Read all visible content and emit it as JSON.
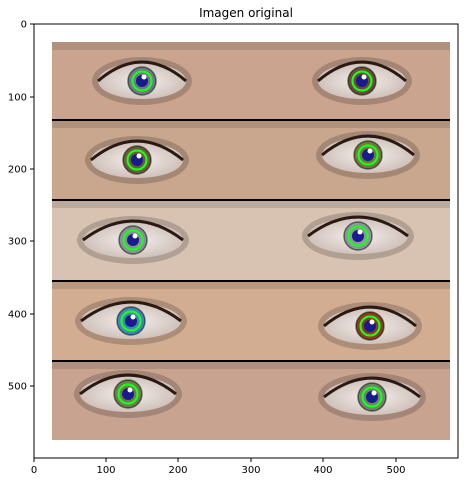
{
  "figure": {
    "title": "Imagen original"
  },
  "axes": {
    "x_ticks": [
      "0",
      "100",
      "200",
      "300",
      "400",
      "500"
    ],
    "y_ticks": [
      "0",
      "100",
      "200",
      "300",
      "400",
      "500"
    ]
  },
  "photo": {
    "strips": [
      {
        "name": "strip-1",
        "skin": "#caa48f",
        "iris_left": "#6e7a86",
        "iris_right": "#6b4a36"
      },
      {
        "name": "strip-2",
        "skin": "#c9a78e",
        "iris_left": "#6b5a36",
        "iris_right": "#6e7a3c"
      },
      {
        "name": "strip-3",
        "skin": "#d8c2b2",
        "iris_left": "#8a8f96",
        "iris_right": "#8c969c"
      },
      {
        "name": "strip-4",
        "skin": "#d2ad92",
        "iris_left": "#3f86b5",
        "iris_right": "#8a3d1c"
      },
      {
        "name": "strip-5",
        "skin": "#c8a390",
        "iris_left": "#6d7e4a",
        "iris_right": "#70826a"
      }
    ],
    "pupil_color": "#1a1a8f",
    "circle_color": "#19ff19",
    "divider_color": "#000000"
  }
}
